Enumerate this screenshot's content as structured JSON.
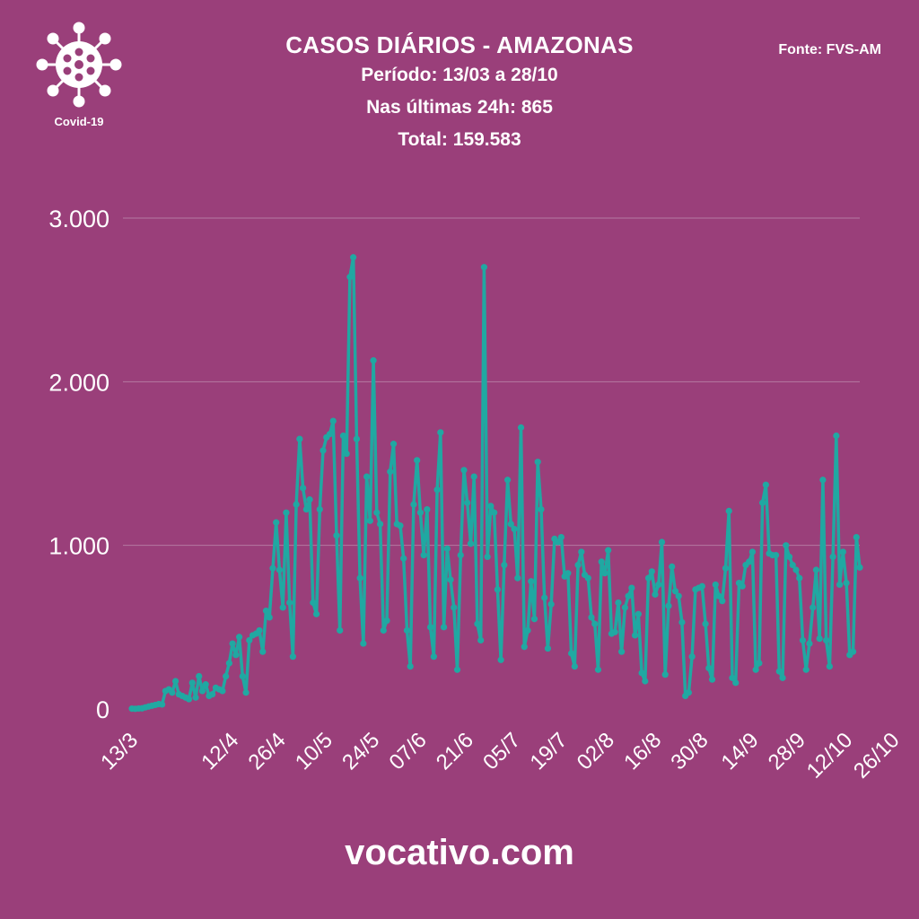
{
  "header": {
    "title": "CASOS DIÁRIOS - AMAZONAS",
    "period": "Período: 13/03 a 28/10",
    "last24h": "Nas últimas 24h: 865",
    "total": "Total: 159.583"
  },
  "source": "Fonte: FVS-AM",
  "logo": {
    "label": "Covid-19",
    "icon": "virus-icon"
  },
  "footer": {
    "site": "vocativo.com"
  },
  "colors": {
    "background": "#9a3f7a",
    "line": "#20a8a2",
    "text": "#ffffff",
    "grid": "#b47aa2"
  },
  "chart_data": {
    "type": "line",
    "title": "CASOS DIÁRIOS - AMAZONAS",
    "xlabel": "",
    "ylabel": "",
    "ylim": [
      0,
      3000
    ],
    "yticks": [
      0,
      1000,
      2000,
      3000
    ],
    "ytick_labels": [
      "0",
      "1.000",
      "2.000",
      "3.000"
    ],
    "grid": true,
    "x_start": "13/3",
    "xticks": [
      {
        "label": "13/3",
        "day": 0
      },
      {
        "label": "12/4",
        "day": 30
      },
      {
        "label": "26/4",
        "day": 44
      },
      {
        "label": "10/5",
        "day": 58
      },
      {
        "label": "24/5",
        "day": 72
      },
      {
        "label": "07/6",
        "day": 86
      },
      {
        "label": "21/6",
        "day": 100
      },
      {
        "label": "05/7",
        "day": 114
      },
      {
        "label": "19/7",
        "day": 128
      },
      {
        "label": "02/8",
        "day": 142
      },
      {
        "label": "16/8",
        "day": 156
      },
      {
        "label": "30/8",
        "day": 170
      },
      {
        "label": "14/9",
        "day": 185
      },
      {
        "label": "28/9",
        "day": 199
      },
      {
        "label": "12/10",
        "day": 213
      },
      {
        "label": "26/10",
        "day": 227
      }
    ],
    "series": [
      {
        "color": "#20a8a2",
        "values": [
          2,
          1,
          3,
          4,
          10,
          15,
          20,
          25,
          30,
          28,
          110,
          120,
          100,
          170,
          90,
          80,
          70,
          60,
          160,
          70,
          200,
          110,
          150,
          80,
          90,
          130,
          120,
          110,
          200,
          280,
          400,
          330,
          440,
          200,
          100,
          420,
          450,
          460,
          480,
          350,
          600,
          560,
          860,
          1140,
          850,
          620,
          1200,
          650,
          320,
          1250,
          1650,
          1350,
          1220,
          1280,
          650,
          580,
          1220,
          1580,
          1660,
          1680,
          1760,
          1060,
          480,
          1670,
          1560,
          2640,
          2760,
          1650,
          800,
          400,
          1420,
          1150,
          2130,
          1200,
          1130,
          480,
          540,
          1450,
          1620,
          1130,
          1120,
          920,
          480,
          260,
          1250,
          1520,
          1200,
          940,
          1220,
          500,
          320,
          1340,
          1690,
          500,
          980,
          790,
          620,
          240,
          940,
          1460,
          1260,
          1010,
          1420,
          520,
          420,
          2700,
          930,
          1240,
          1200,
          730,
          300,
          880,
          1400,
          1130,
          1100,
          800,
          1720,
          380,
          480,
          780,
          550,
          1510,
          1220,
          680,
          370,
          640,
          1040,
          1020,
          1050,
          810,
          830,
          340,
          260,
          880,
          960,
          820,
          800,
          560,
          520,
          240,
          900,
          830,
          970,
          460,
          470,
          650,
          350,
          620,
          690,
          740,
          450,
          580,
          220,
          170,
          800,
          840,
          700,
          760,
          1020,
          210,
          630,
          870,
          720,
          690,
          530,
          80,
          100,
          320,
          730,
          740,
          750,
          520,
          250,
          180,
          760,
          690,
          660,
          860,
          1210,
          190,
          160,
          770,
          750,
          880,
          900,
          960,
          240,
          280,
          1260,
          1370,
          950,
          940,
          940,
          230,
          190,
          1000,
          930,
          880,
          850,
          800,
          420,
          240,
          400,
          620,
          850,
          430,
          1400,
          420,
          260,
          930,
          1670,
          760,
          960,
          770,
          330,
          350,
          1050,
          865
        ]
      }
    ]
  }
}
